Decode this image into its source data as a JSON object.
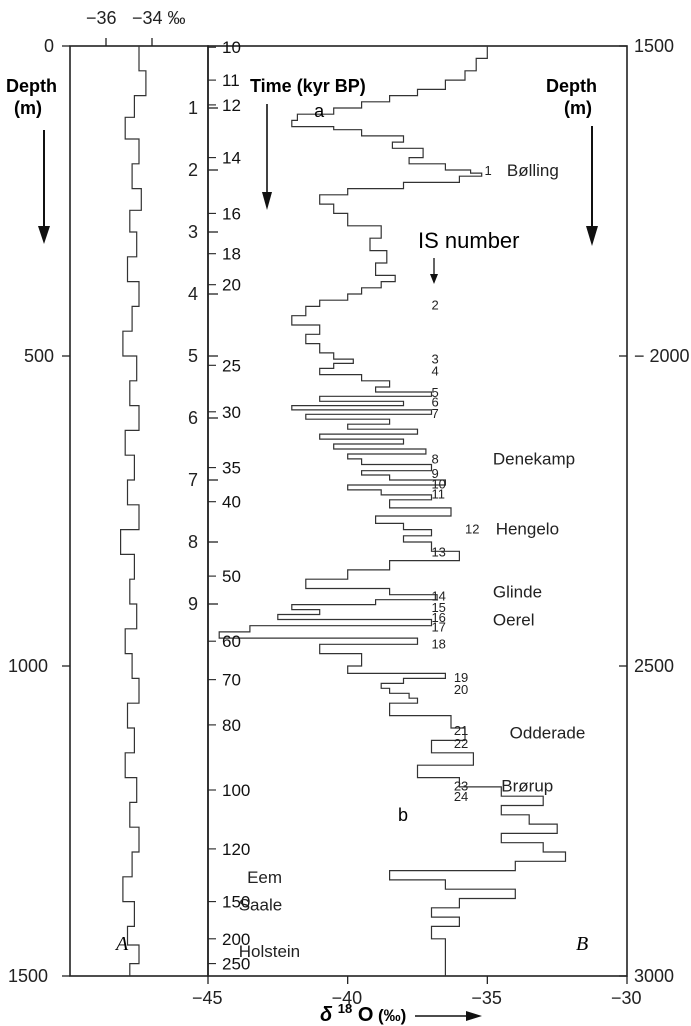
{
  "chart_data": [
    {
      "panel": "A",
      "type": "line",
      "title": "",
      "panel_label": "A",
      "top_axis_ticks": [
        "−36",
        "−34 ‰"
      ],
      "left_axis_label_line1": "Depth",
      "left_axis_label_line2": "(m)",
      "left_axis_ticks": [
        "0",
        "500",
        "1000",
        "1500"
      ],
      "ylim": [
        0,
        1500
      ],
      "xlim": [
        -38,
        -32
      ],
      "x": [
        -34.8,
        -35.0,
        -34.7,
        -35.2,
        -35.6,
        -35.0,
        -35.3,
        -34.9,
        -35.4,
        -35.1,
        -35.5,
        -35.0,
        -35.3,
        -35.7,
        -35.1,
        -35.4,
        -35.0,
        -35.6,
        -35.2,
        -35.5,
        -35.0,
        -35.8,
        -35.2,
        -35.4,
        -35.1,
        -35.6,
        -35.3,
        -35.0,
        -35.5,
        -35.2,
        -35.6,
        -35.1,
        -35.4,
        -35.0,
        -35.3,
        -35.7,
        -35.2,
        -35.5,
        -35.0,
        -35.4
      ],
      "y": [
        0,
        40,
        80,
        115,
        150,
        190,
        230,
        265,
        300,
        340,
        380,
        420,
        460,
        500,
        540,
        580,
        620,
        660,
        700,
        740,
        780,
        820,
        860,
        900,
        940,
        980,
        1020,
        1060,
        1100,
        1140,
        1180,
        1220,
        1260,
        1300,
        1340,
        1380,
        1420,
        1450,
        1480,
        1500
      ]
    },
    {
      "panel": "B",
      "type": "line",
      "title": "",
      "panel_label": "B",
      "x_ticks": [
        "−45",
        "−40",
        "−35",
        "−30"
      ],
      "xlim": [
        -45,
        -30
      ],
      "xlabel_main": "δ",
      "xlabel_sup": "18",
      "xlabel_tail": "O",
      "xlabel_unit": "(‰)",
      "left_inner_axis_ticks": [
        "1",
        "2",
        "3",
        "4",
        "5",
        "6",
        "7",
        "8",
        "9"
      ],
      "left_inner_axis_depths": [
        100,
        200,
        300,
        400,
        500,
        600,
        700,
        800,
        900
      ],
      "right_axis_label_line1": "Depth",
      "right_axis_label_line2": "(m)",
      "right_axis_ticks": [
        "1500",
        "2000",
        "2500",
        "3000"
      ],
      "right_axis_depths": [
        1500,
        2000,
        2500,
        3000
      ],
      "ylim": [
        1500,
        3000
      ],
      "time_axis_title": "Time  (kyr BP)",
      "time_labels": [
        "10",
        "11",
        "12",
        "14",
        "16",
        "18",
        "20",
        "25",
        "30",
        "35",
        "40",
        "50",
        "60",
        "70",
        "80",
        "100",
        "120",
        "150",
        "200",
        "250"
      ],
      "time_label_depths": [
        1502,
        1555,
        1595,
        1680,
        1770,
        1835,
        1885,
        2015,
        2090,
        2180,
        2235,
        2355,
        2460,
        2522,
        2595,
        2700,
        2795,
        2880,
        2940,
        2980
      ],
      "is_label": "IS number",
      "is_numbers": [
        "1",
        "2",
        "3",
        "4",
        "5",
        "6",
        "7",
        "8",
        "9",
        "10",
        "11",
        "12",
        "13",
        "14",
        "15",
        "16",
        "17",
        "18",
        "19",
        "20",
        "21",
        "22",
        "23",
        "24"
      ],
      "is_depths": [
        1700,
        1917,
        2004,
        2023,
        2058,
        2073,
        2092,
        2165,
        2189,
        2206,
        2222,
        2278,
        2315,
        2386,
        2405,
        2421,
        2436,
        2464,
        2518,
        2537,
        2603,
        2624,
        2693,
        2710
      ],
      "is_x": [
        -35.1,
        -37.0,
        -37.0,
        -37.0,
        -37.0,
        -37.0,
        -37.0,
        -37.0,
        -37.0,
        -37.0,
        -37.0,
        -35.8,
        -37.0,
        -37.0,
        -37.0,
        -37.0,
        -37.0,
        -37.0,
        -36.2,
        -36.2,
        -36.2,
        -36.2,
        -36.2,
        -36.2
      ],
      "stages": [
        "Bølling",
        "Denekamp",
        "Hengelo",
        "Glinde",
        "Oerel",
        "Odderade",
        "Brørup",
        "Eem",
        "Saale",
        "Holstein"
      ],
      "stage_depths": [
        1700,
        2165,
        2278,
        2380,
        2425,
        2607,
        2693,
        2840,
        2885,
        2960
      ],
      "stage_x": [
        -34.3,
        -34.8,
        -34.7,
        -34.8,
        -34.8,
        -34.2,
        -34.5,
        -43.6,
        -43.9,
        -43.9
      ],
      "markers": [
        "a",
        "b"
      ],
      "marker_depths": [
        1605,
        2740
      ],
      "marker_x": [
        -41.2,
        -38.2
      ],
      "x": [
        -35.5,
        -35.0,
        -35.4,
        -35.8,
        -36.5,
        -37.5,
        -38.5,
        -39.5,
        -40.5,
        -41.8,
        -42.0,
        -40.5,
        -39.5,
        -38.0,
        -38.4,
        -37.3,
        -37.8,
        -36.5,
        -35.6,
        -35.2,
        -36.0,
        -38.0,
        -40.0,
        -41.0,
        -40.5,
        -40.0,
        -38.8,
        -39.2,
        -38.6,
        -39.0,
        -38.3,
        -38.8,
        -39.5,
        -40.0,
        -41.0,
        -41.5,
        -42.0,
        -41.0,
        -41.5,
        -41.0,
        -40.5,
        -39.8,
        -40.5,
        -41.0,
        -39.5,
        -38.5,
        -39.0,
        -37.0,
        -41.0,
        -38.0,
        -42.0,
        -37.0,
        -41.5,
        -38.5,
        -40.0,
        -37.5,
        -41.0,
        -38.0,
        -40.5,
        -37.2,
        -40.0,
        -39.5,
        -37.0,
        -39.5,
        -38.5,
        -36.5,
        -40.0,
        -38.8,
        -37.0,
        -38.5,
        -36.3,
        -39.0,
        -38.0,
        -37.0,
        -38.0,
        -37.0,
        -36.0,
        -38.5,
        -40.0,
        -41.5,
        -38.5,
        -36.8,
        -39.0,
        -42.0,
        -41.0,
        -42.5,
        -37.0,
        -43.5,
        -44.6,
        -37.5,
        -41.0,
        -39.5,
        -40.0,
        -36.5,
        -38.0,
        -38.8,
        -38.5,
        -37.8,
        -37.5,
        -38.5,
        -36.3,
        -35.8,
        -37.0,
        -35.5,
        -37.5,
        -36.0,
        -34.5,
        -33.0,
        -34.5,
        -33.5,
        -32.5,
        -34.5,
        -33.0,
        -32.2,
        -34.0,
        -38.5,
        -36.5,
        -34.0,
        -36.0,
        -37.0,
        -36.0,
        -37.0,
        -36.5,
        -36.5
      ],
      "y": [
        1500,
        1520,
        1540,
        1555,
        1570,
        1580,
        1590,
        1600,
        1610,
        1620,
        1630,
        1635,
        1645,
        1655,
        1665,
        1680,
        1690,
        1700,
        1705,
        1710,
        1720,
        1730,
        1740,
        1755,
        1770,
        1790,
        1810,
        1830,
        1850,
        1870,
        1880,
        1890,
        1900,
        1910,
        1920,
        1935,
        1950,
        1965,
        1980,
        1995,
        2005,
        2012,
        2020,
        2030,
        2040,
        2050,
        2058,
        2065,
        2073,
        2080,
        2087,
        2094,
        2102,
        2110,
        2118,
        2126,
        2134,
        2142,
        2150,
        2158,
        2166,
        2175,
        2185,
        2192,
        2200,
        2208,
        2216,
        2224,
        2232,
        2245,
        2258,
        2270,
        2280,
        2290,
        2300,
        2315,
        2330,
        2345,
        2360,
        2375,
        2385,
        2393,
        2401,
        2409,
        2417,
        2425,
        2435,
        2445,
        2455,
        2465,
        2480,
        2500,
        2512,
        2520,
        2528,
        2536,
        2544,
        2552,
        2560,
        2580,
        2600,
        2620,
        2640,
        2660,
        2680,
        2695,
        2710,
        2725,
        2740,
        2755,
        2770,
        2785,
        2800,
        2815,
        2830,
        2845,
        2860,
        2875,
        2890,
        2905,
        2920,
        2940,
        2965,
        3000
      ]
    }
  ]
}
